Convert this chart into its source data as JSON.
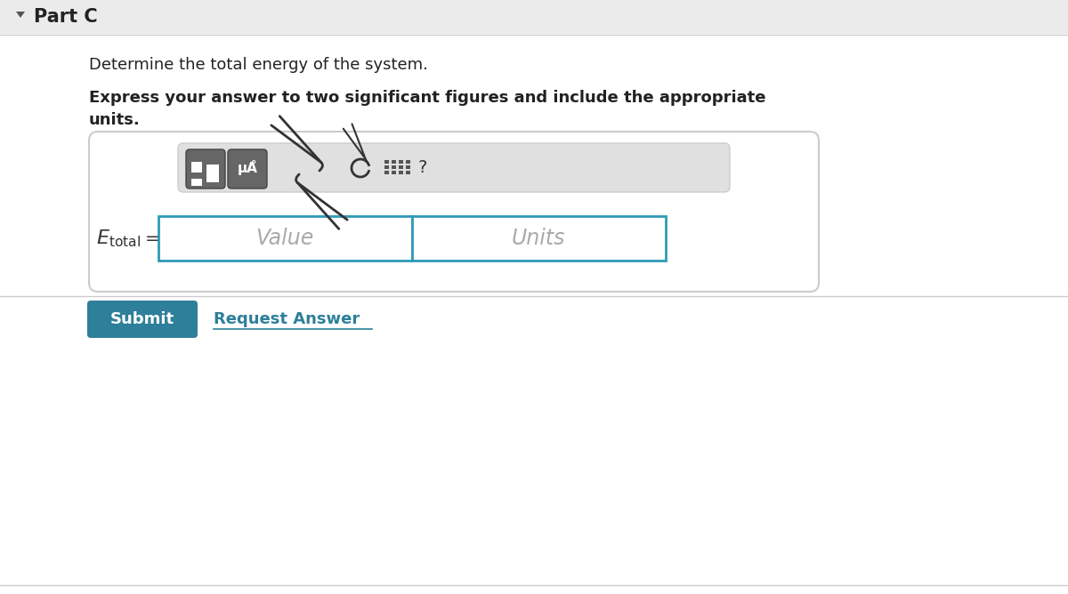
{
  "bg_color": "#ffffff",
  "header_bg": "#ebebeb",
  "header_text": "Part C",
  "header_triangle_color": "#555555",
  "line1": "Determine the total energy of the system.",
  "line2": "Express your answer to two significant figures and include the appropriate",
  "line3": "units.",
  "toolbar_bg": "#e0e0e0",
  "toolbar_border": "#cccccc",
  "input_box_border": "#2e9ab5",
  "input_outer_border": "#cccccc",
  "value_placeholder": "Value",
  "units_placeholder": "Units",
  "placeholder_color": "#aaaaaa",
  "submit_bg": "#2e7f99",
  "submit_text": "Submit",
  "submit_text_color": "#ffffff",
  "request_answer_text": "Request Answer",
  "request_answer_color": "#2e7f99"
}
